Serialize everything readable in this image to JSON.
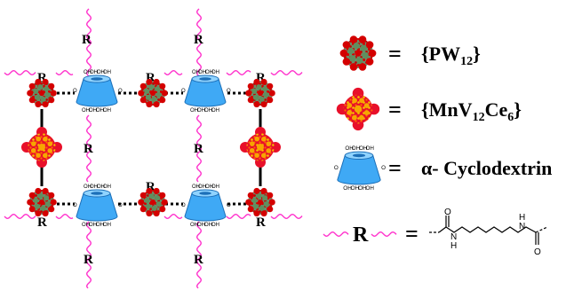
{
  "network": {
    "r_label": "R",
    "oh_label": "OH",
    "o_label": "O"
  },
  "legend": {
    "eq": "=",
    "pw12": {
      "open": "{PW",
      "sub": "12",
      "close": "}"
    },
    "mnv12ce6": {
      "open": "{MnV",
      "sub1": "12",
      "mid": "Ce",
      "sub2": "6",
      "close": "}"
    },
    "cyclodextrin": "α- Cyclodextrin",
    "linker": {
      "r": "R",
      "n": "N",
      "h": "H",
      "o": "O"
    }
  },
  "colors": {
    "pink": "#ff33cc",
    "cyclodextrin_fill": "#3fa9f5",
    "cyclodextrin_stroke": "#1c6fb8",
    "pw_green": "#5f8f5f",
    "pw_red": "#d40000",
    "mn_red": "#e8102a",
    "mn_orange": "#f7a600"
  }
}
